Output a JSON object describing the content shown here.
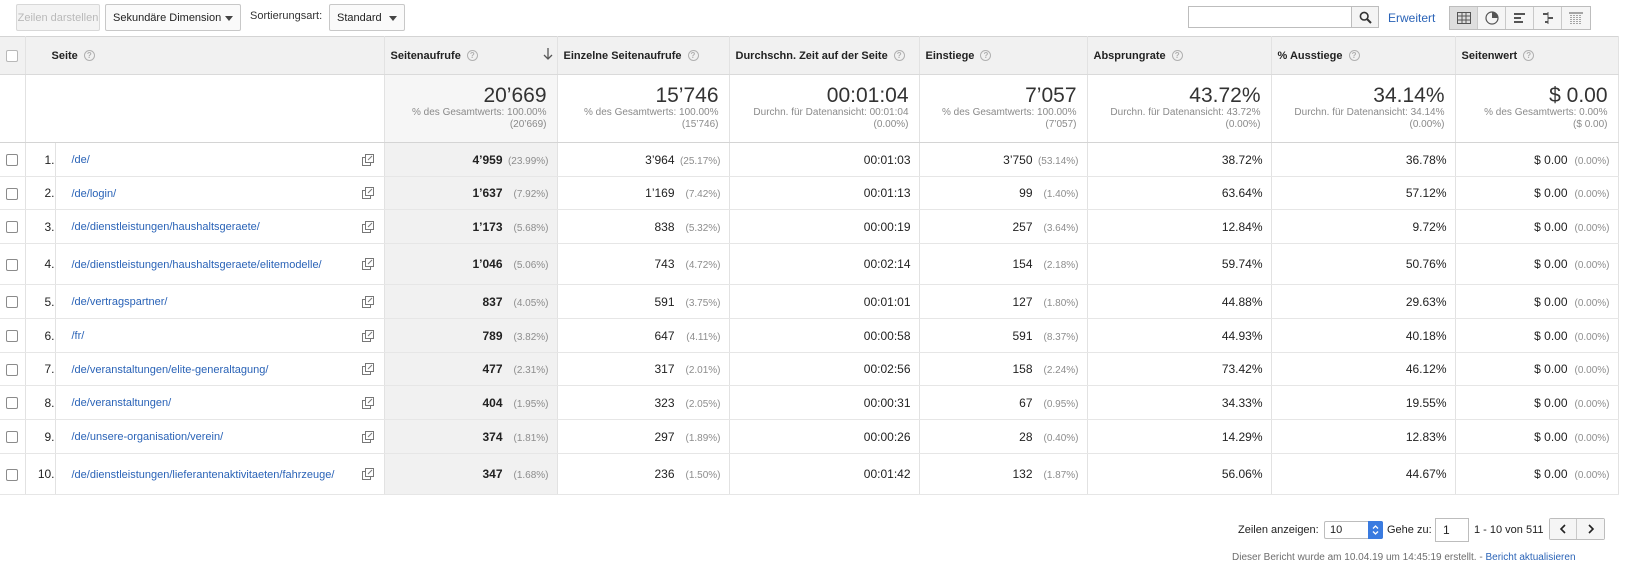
{
  "toolbar": {
    "rows_display_label": "Zeilen darstellen",
    "secondary_dimension_label": "Sekundäre Dimension",
    "sort_type_label": "Sortierungsart:",
    "sort_type_value": "Standard",
    "search_value": "",
    "advanced_link": "Erweitert",
    "view_icons": [
      "table-icon",
      "pie-chart-icon",
      "bar-chart-icon",
      "comparison-icon",
      "pivot-icon"
    ]
  },
  "columns": [
    {
      "label": "Seite"
    },
    {
      "label": "Seitenaufrufe"
    },
    {
      "label": "Einzelne Seitenaufrufe"
    },
    {
      "label": "Durchschn. Zeit auf der Seite"
    },
    {
      "label": "Einstiege"
    },
    {
      "label": "Absprungrate"
    },
    {
      "label": "% Ausstiege"
    },
    {
      "label": "Seitenwert"
    }
  ],
  "totals": [
    {
      "value": "20’669",
      "sub1": "% des Gesamtwerts: 100.00%",
      "sub2": "(20’669)"
    },
    {
      "value": "15’746",
      "sub1": "% des Gesamtwerts: 100.00%",
      "sub2": "(15’746)"
    },
    {
      "value": "00:01:04",
      "sub1": "Durchn. für Datenansicht: 00:01:04",
      "sub2": "(0.00%)"
    },
    {
      "value": "7’057",
      "sub1": "% des Gesamtwerts: 100.00%",
      "sub2": "(7’057)"
    },
    {
      "value": "43.72%",
      "sub1": "Durchn. für Datenansicht: 43.72%",
      "sub2": "(0.00%)"
    },
    {
      "value": "34.14%",
      "sub1": "Durchn. für Datenansicht: 34.14%",
      "sub2": "(0.00%)"
    },
    {
      "value": "$ 0.00",
      "sub1": "% des Gesamtwerts: 0.00%",
      "sub2": "($ 0.00)"
    }
  ],
  "rows": [
    {
      "index": "1.",
      "page": "/de/",
      "views": "4’959",
      "views_pct": "(23.99%)",
      "unique": "3’964",
      "unique_pct": "(25.17%)",
      "time": "00:01:03",
      "entrances": "3’750",
      "entrances_pct": "(53.14%)",
      "bounce": "38.72%",
      "exit": "36.78%",
      "value": "$ 0.00",
      "value_pct": "(0.00%)"
    },
    {
      "index": "2.",
      "page": "/de/login/",
      "views": "1’637",
      "views_pct": "(7.92%)",
      "unique": "1’169",
      "unique_pct": "(7.42%)",
      "time": "00:01:13",
      "entrances": "99",
      "entrances_pct": "(1.40%)",
      "bounce": "63.64%",
      "exit": "57.12%",
      "value": "$ 0.00",
      "value_pct": "(0.00%)"
    },
    {
      "index": "3.",
      "page": "/de/dienstleistungen/haushaltsgeraete/",
      "views": "1’173",
      "views_pct": "(5.68%)",
      "unique": "838",
      "unique_pct": "(5.32%)",
      "time": "00:00:19",
      "entrances": "257",
      "entrances_pct": "(3.64%)",
      "bounce": "12.84%",
      "exit": "9.72%",
      "value": "$ 0.00",
      "value_pct": "(0.00%)"
    },
    {
      "index": "4.",
      "page": "/de/dienstleistungen/haushaltsgeraete/elitemodelle/",
      "views": "1’046",
      "views_pct": "(5.06%)",
      "unique": "743",
      "unique_pct": "(4.72%)",
      "time": "00:02:14",
      "entrances": "154",
      "entrances_pct": "(2.18%)",
      "bounce": "59.74%",
      "exit": "50.76%",
      "value": "$ 0.00",
      "value_pct": "(0.00%)"
    },
    {
      "index": "5.",
      "page": "/de/vertragspartner/",
      "views": "837",
      "views_pct": "(4.05%)",
      "unique": "591",
      "unique_pct": "(3.75%)",
      "time": "00:01:01",
      "entrances": "127",
      "entrances_pct": "(1.80%)",
      "bounce": "44.88%",
      "exit": "29.63%",
      "value": "$ 0.00",
      "value_pct": "(0.00%)"
    },
    {
      "index": "6.",
      "page": "/fr/",
      "views": "789",
      "views_pct": "(3.82%)",
      "unique": "647",
      "unique_pct": "(4.11%)",
      "time": "00:00:58",
      "entrances": "591",
      "entrances_pct": "(8.37%)",
      "bounce": "44.93%",
      "exit": "40.18%",
      "value": "$ 0.00",
      "value_pct": "(0.00%)"
    },
    {
      "index": "7.",
      "page": "/de/veranstaltungen/elite-generaltagung/",
      "views": "477",
      "views_pct": "(2.31%)",
      "unique": "317",
      "unique_pct": "(2.01%)",
      "time": "00:02:56",
      "entrances": "158",
      "entrances_pct": "(2.24%)",
      "bounce": "73.42%",
      "exit": "46.12%",
      "value": "$ 0.00",
      "value_pct": "(0.00%)"
    },
    {
      "index": "8.",
      "page": "/de/veranstaltungen/",
      "views": "404",
      "views_pct": "(1.95%)",
      "unique": "323",
      "unique_pct": "(2.05%)",
      "time": "00:00:31",
      "entrances": "67",
      "entrances_pct": "(0.95%)",
      "bounce": "34.33%",
      "exit": "19.55%",
      "value": "$ 0.00",
      "value_pct": "(0.00%)"
    },
    {
      "index": "9.",
      "page": "/de/unsere-organisation/verein/",
      "views": "374",
      "views_pct": "(1.81%)",
      "unique": "297",
      "unique_pct": "(1.89%)",
      "time": "00:00:26",
      "entrances": "28",
      "entrances_pct": "(0.40%)",
      "bounce": "14.29%",
      "exit": "12.83%",
      "value": "$ 0.00",
      "value_pct": "(0.00%)"
    },
    {
      "index": "10.",
      "page": "/de/dienstleistungen/lieferantenaktivitaeten/fahrzeuge/",
      "views": "347",
      "views_pct": "(1.68%)",
      "unique": "236",
      "unique_pct": "(1.50%)",
      "time": "00:01:42",
      "entrances": "132",
      "entrances_pct": "(1.87%)",
      "bounce": "56.06%",
      "exit": "44.67%",
      "value": "$ 0.00",
      "value_pct": "(0.00%)"
    }
  ],
  "footer": {
    "rows_show_label": "Zeilen anzeigen:",
    "rows_show_value": "10",
    "goto_label": "Gehe zu:",
    "goto_value": "1",
    "range_text": "1 - 10 von 511",
    "report_note": "Dieser Bericht wurde am 10.04.19 um 14:45:19 erstellt. - ",
    "refresh_link": "Bericht aktualisieren"
  },
  "colors": {
    "link": "#2a63b7",
    "header_bg": "#f1f1f1",
    "selected_col_bg": "#f1f1f1",
    "spinner_blue": "#3a7be0"
  }
}
